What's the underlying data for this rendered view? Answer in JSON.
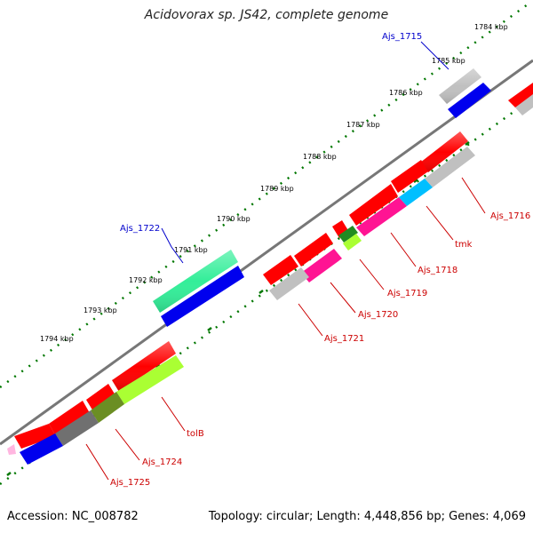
{
  "title": "Acidovorax sp. JS42, complete genome",
  "footer": {
    "accession": "Accession: NC_008782",
    "stats": "Topology: circular; Length: 4,448,856 bp; Genes: 4,069"
  },
  "kbp_labels": [
    "1784 kbp",
    "1785 kbp",
    "1786 kbp",
    "1787 kbp",
    "1788 kbp",
    "1789 kbp",
    "1790 kbp",
    "1791 kbp",
    "1792 kbp",
    "1793 kbp",
    "1794 kbp"
  ],
  "gene_labels": {
    "ajs_1715": "Ajs_1715",
    "ajs_1716": "Ajs_1716",
    "tmk": "tmk",
    "ajs_1718": "Ajs_1718",
    "ajs_1719": "Ajs_1719",
    "ajs_1720": "Ajs_1720",
    "ajs_1721": "Ajs_1721",
    "ajs_1722": "Ajs_1722",
    "tolb": "tolB",
    "ajs_1724": "Ajs_1724",
    "ajs_1725": "Ajs_1725"
  },
  "colors": {
    "red": "#ff0000",
    "grey": "#c0c0c0",
    "blue": "#0000ee",
    "magenta": "#ff1493",
    "cyan": "#00bfff",
    "teal": "#33ee99",
    "lime": "#aaff33",
    "dark_green": "#228b22",
    "olive": "#6b8e23",
    "dark_grey": "#707070",
    "pink": "#ffb6e0",
    "label_red": "#cc0000",
    "label_blue": "#0000cc",
    "backbone": "#777777",
    "tick_green": "#007700"
  }
}
